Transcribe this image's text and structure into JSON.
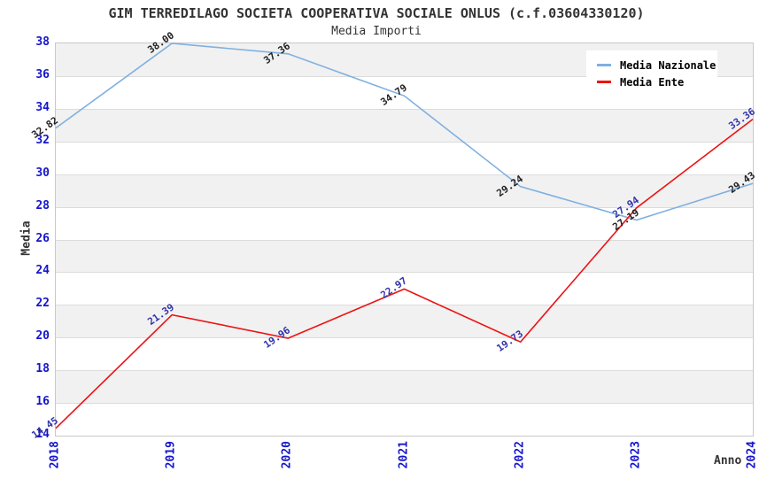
{
  "title": "GIM TERREDILAGO SOCIETA COOPERATIVA SOCIALE ONLUS (c.f.03604330120)",
  "subtitle": "Media Importi",
  "chart_data": {
    "type": "line",
    "x": [
      2018,
      2019,
      2020,
      2021,
      2022,
      2023,
      2024
    ],
    "series": [
      {
        "name": "Media Nazionale",
        "color": "#7FB0E0",
        "label_color": "#222222",
        "values": [
          32.82,
          38.0,
          37.36,
          34.79,
          29.24,
          27.19,
          29.43
        ]
      },
      {
        "name": "Media Ente",
        "color": "#EE1111",
        "label_color": "#3333AA",
        "values": [
          14.45,
          21.39,
          19.96,
          22.97,
          19.73,
          27.94,
          33.36
        ]
      }
    ],
    "xlabel": "Anno",
    "ylabel": "Media",
    "ylim": [
      14,
      38
    ],
    "ytick_step": 2,
    "grid": true,
    "legend_position": "top-right",
    "axis_tick_color": "#1414CC",
    "band_color": "#f1f1f1",
    "gridline_color": "#dcdcdc",
    "plot_border_color": "#c8c8c8",
    "title_color": "#333333"
  }
}
